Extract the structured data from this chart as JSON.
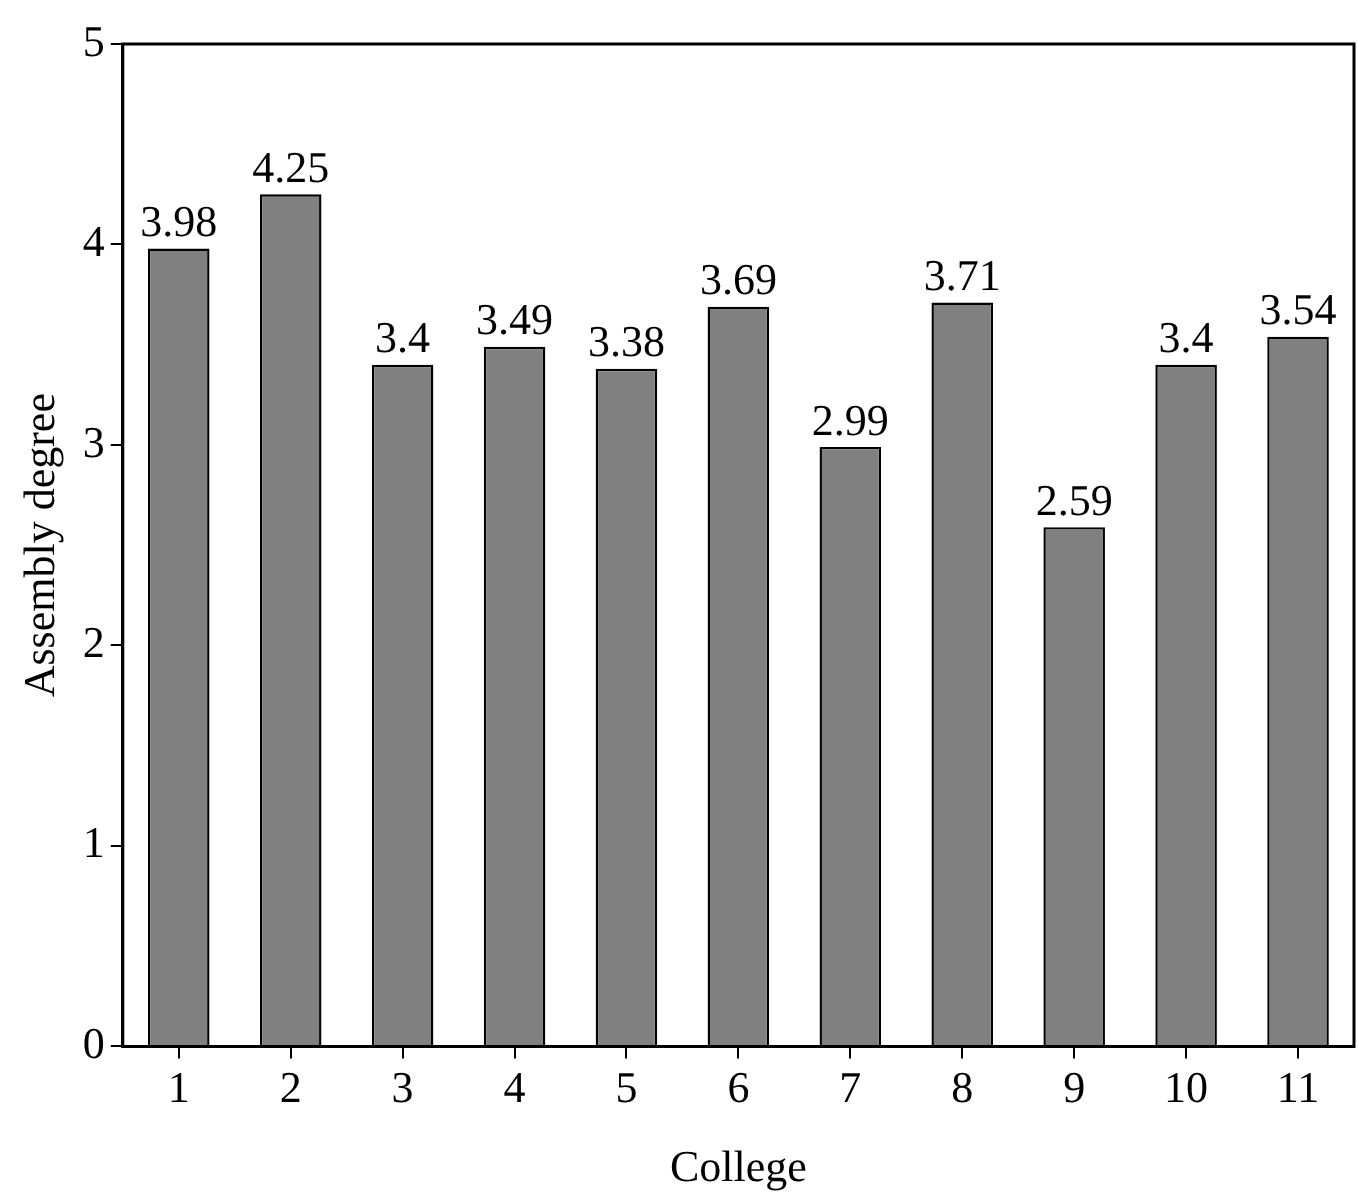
{
  "chart_data": {
    "type": "bar",
    "xlabel": "College",
    "ylabel": "Assembly degree",
    "categories": [
      "1",
      "2",
      "3",
      "4",
      "5",
      "6",
      "7",
      "8",
      "9",
      "10",
      "11"
    ],
    "values": [
      3.98,
      4.25,
      3.4,
      3.49,
      3.38,
      3.69,
      2.99,
      3.71,
      2.59,
      3.4,
      3.54
    ],
    "color": "#808080",
    "ylim": [
      0,
      5
    ],
    "yticks": [
      0,
      1,
      2,
      3,
      4,
      5
    ],
    "grid": false,
    "legend": false,
    "data_labels": true
  }
}
